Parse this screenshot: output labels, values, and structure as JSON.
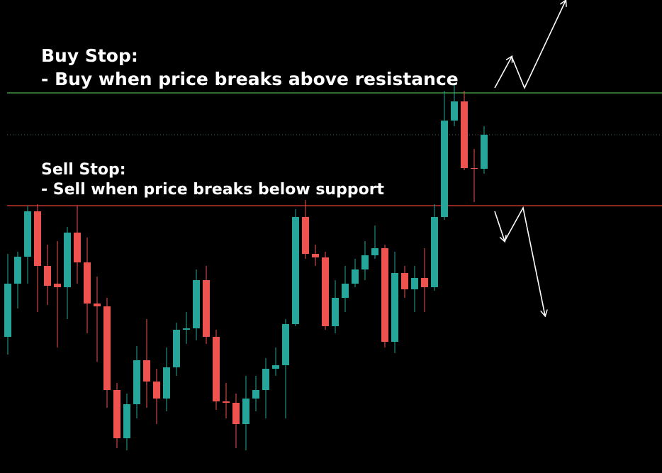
{
  "chart_data": {
    "type": "candlestick",
    "annotations": [
      "Buy Stop:",
      "- Buy when price breaks above resistance",
      "Sell Stop:",
      "- Sell when price breaks below support"
    ],
    "open": [
      192,
      267,
      305,
      369,
      292,
      267,
      262,
      339,
      297,
      239,
      235,
      117,
      49,
      97,
      159,
      129,
      105,
      149,
      202,
      204,
      272,
      192,
      101,
      99,
      69,
      105,
      117,
      147,
      152,
      210,
      361,
      309,
      304,
      207,
      247,
      267,
      287,
      307,
      317,
      185,
      282,
      259,
      275,
      262,
      361,
      497,
      524,
      430,
      429
    ],
    "high": [
      309,
      312,
      377,
      379,
      322,
      327,
      347,
      377,
      332,
      277,
      247,
      127,
      112,
      179,
      217,
      147,
      177,
      212,
      227,
      287,
      292,
      202,
      127,
      112,
      137,
      137,
      162,
      177,
      217,
      372,
      385,
      322,
      312,
      272,
      292,
      302,
      327,
      349,
      322,
      312,
      292,
      292,
      317,
      379,
      539,
      547,
      539,
      457,
      489
    ],
    "low": [
      167,
      232,
      267,
      227,
      237,
      177,
      217,
      267,
      197,
      157,
      92,
      35,
      32,
      77,
      92,
      69,
      87,
      137,
      182,
      187,
      182,
      89,
      77,
      35,
      32,
      87,
      77,
      137,
      77,
      207,
      302,
      292,
      202,
      197,
      227,
      262,
      272,
      302,
      177,
      169,
      247,
      227,
      227,
      257,
      357,
      489,
      427,
      382,
      422
    ],
    "close": [
      267,
      305,
      369,
      292,
      264,
      262,
      339,
      297,
      239,
      235,
      117,
      49,
      97,
      159,
      129,
      105,
      149,
      202,
      204,
      272,
      192,
      101,
      99,
      69,
      105,
      117,
      147,
      152,
      210,
      361,
      309,
      304,
      207,
      247,
      267,
      287,
      307,
      317,
      185,
      282,
      259,
      275,
      262,
      361,
      497,
      524,
      430,
      429,
      477
    ],
    "up_color": "#26a69a",
    "down_color": "#ef5350",
    "ylim": [
      0,
      667
    ],
    "hlines": [
      {
        "value": 536,
        "color": "#4caf50",
        "style": "solid"
      },
      {
        "value": 477,
        "color": "#3a4a44",
        "style": "dotted"
      },
      {
        "value": 377,
        "color": "#e53935",
        "style": "solid"
      }
    ]
  }
}
